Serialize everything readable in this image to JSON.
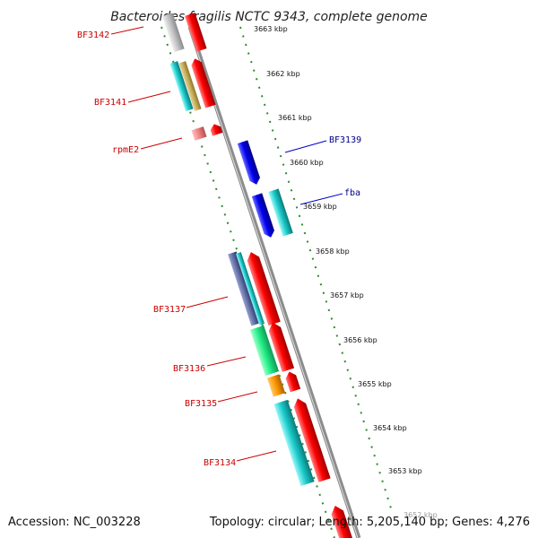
{
  "title": "Bacteroides fragilis NCTC 9343, complete genome",
  "footer": {
    "accession": "Accession: NC_003228",
    "topology": "Topology: circular; Length: 5,205,140 bp; Genes: 4,276"
  },
  "colors": {
    "backbone": "#8c8c8c",
    "ticks": "#2e8b2e",
    "left_labels": "#cc0000",
    "right_labels": "#00008b"
  },
  "scale_ticks": [
    "3663 kbp",
    "3662 kbp",
    "3661 kbp",
    "3660 kbp",
    "3659 kbp",
    "3658 kbp",
    "3657 kbp",
    "3656 kbp",
    "3655 kbp",
    "3654 kbp",
    "3653 kbp",
    "3652 kbp"
  ],
  "gene_labels_left": [
    "BF3142",
    "BF3141",
    "rpmE2",
    "BF3137",
    "BF3136",
    "BF3135",
    "BF3134"
  ],
  "gene_labels_right": [
    "BF3139",
    "fba"
  ]
}
